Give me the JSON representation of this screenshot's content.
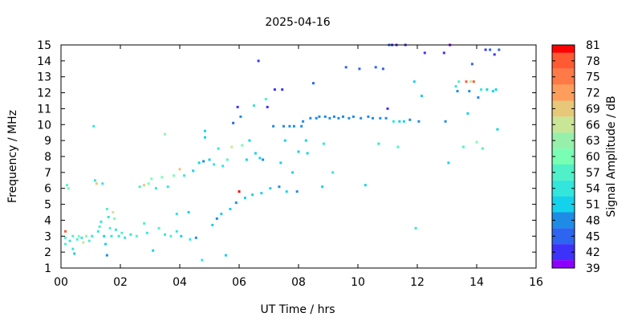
{
  "chart_data": {
    "type": "heatmap",
    "title": "2025-04-16",
    "xlabel": "UT Time / hrs",
    "ylabel": "Frequency / MHz",
    "colorbar_label": "Signal Amplitude / dB",
    "xlim": [
      0,
      16
    ],
    "ylim": [
      1,
      15
    ],
    "x_ticks": [
      "00",
      "02",
      "04",
      "06",
      "08",
      "10",
      "12",
      "14",
      "16"
    ],
    "y_ticks": [
      "1",
      "2",
      "3",
      "4",
      "5",
      "6",
      "7",
      "8",
      "9",
      "10",
      "11",
      "12",
      "13",
      "14",
      "15"
    ],
    "grid": false,
    "colorbar": {
      "levels": [
        81,
        78,
        75,
        72,
        69,
        66,
        63,
        60,
        57,
        54,
        51,
        48,
        45,
        42,
        39
      ],
      "colors": [
        "#ff0000",
        "#ff5a32",
        "#ff7a46",
        "#ff9e5c",
        "#e6c878",
        "#c8e696",
        "#96f0aa",
        "#78ffb4",
        "#50f0c8",
        "#32e6dc",
        "#14d2eb",
        "#1e8ce6",
        "#2d64f0",
        "#3c32fa",
        "#8c00ff"
      ]
    },
    "points": [
      [
        0.15,
        3.3,
        78
      ],
      [
        0.15,
        2.9,
        57
      ],
      [
        0.15,
        2.5,
        57
      ],
      [
        0.2,
        6.2,
        57
      ],
      [
        0.25,
        6.0,
        60
      ],
      [
        0.3,
        2.7,
        54
      ],
      [
        0.4,
        3.0,
        57
      ],
      [
        0.4,
        2.2,
        54
      ],
      [
        0.45,
        1.9,
        51
      ],
      [
        0.55,
        2.8,
        57
      ],
      [
        0.6,
        3.0,
        60
      ],
      [
        0.7,
        2.9,
        54
      ],
      [
        0.75,
        2.6,
        66
      ],
      [
        0.85,
        3.0,
        63
      ],
      [
        0.95,
        2.7,
        57
      ],
      [
        1.05,
        3.0,
        54
      ],
      [
        1.1,
        9.9,
        54
      ],
      [
        1.15,
        6.5,
        54
      ],
      [
        1.2,
        6.3,
        69
      ],
      [
        1.25,
        3.3,
        54
      ],
      [
        1.3,
        3.6,
        57
      ],
      [
        1.35,
        3.9,
        54
      ],
      [
        1.4,
        6.3,
        54
      ],
      [
        1.45,
        3.0,
        51
      ],
      [
        1.5,
        2.5,
        51
      ],
      [
        1.55,
        1.8,
        48
      ],
      [
        1.55,
        4.7,
        57
      ],
      [
        1.6,
        4.2,
        54
      ],
      [
        1.65,
        3.5,
        57
      ],
      [
        1.7,
        3.0,
        54
      ],
      [
        1.75,
        4.5,
        66
      ],
      [
        1.8,
        4.1,
        60
      ],
      [
        1.85,
        3.4,
        54
      ],
      [
        1.95,
        3.0,
        54
      ],
      [
        2.05,
        3.2,
        57
      ],
      [
        2.15,
        2.9,
        54
      ],
      [
        2.35,
        3.1,
        54
      ],
      [
        2.55,
        3.0,
        57
      ],
      [
        2.65,
        6.1,
        57
      ],
      [
        2.8,
        6.2,
        69
      ],
      [
        2.8,
        3.8,
        57
      ],
      [
        2.9,
        3.2,
        54
      ],
      [
        2.95,
        6.3,
        60
      ],
      [
        3.05,
        6.6,
        60
      ],
      [
        3.1,
        2.1,
        51
      ],
      [
        3.2,
        6.0,
        54
      ],
      [
        3.3,
        3.5,
        57
      ],
      [
        3.4,
        6.7,
        60
      ],
      [
        3.5,
        3.1,
        54
      ],
      [
        3.5,
        9.4,
        63
      ],
      [
        3.6,
        6.1,
        54
      ],
      [
        3.7,
        3.0,
        57
      ],
      [
        3.8,
        6.8,
        60
      ],
      [
        3.9,
        3.3,
        54
      ],
      [
        3.9,
        4.4,
        54
      ],
      [
        4.0,
        7.2,
        69
      ],
      [
        4.05,
        3.0,
        51
      ],
      [
        4.15,
        6.8,
        54
      ],
      [
        4.3,
        4.5,
        51
      ],
      [
        4.35,
        2.8,
        54
      ],
      [
        4.45,
        7.1,
        51
      ],
      [
        4.55,
        2.9,
        48
      ],
      [
        4.65,
        7.6,
        51
      ],
      [
        4.75,
        1.5,
        54
      ],
      [
        4.8,
        7.7,
        48
      ],
      [
        4.85,
        9.2,
        51
      ],
      [
        4.85,
        9.6,
        51
      ],
      [
        5.0,
        7.8,
        51
      ],
      [
        5.1,
        3.7,
        51
      ],
      [
        5.15,
        7.5,
        54
      ],
      [
        5.25,
        4.1,
        48
      ],
      [
        5.3,
        8.5,
        54
      ],
      [
        5.4,
        4.4,
        51
      ],
      [
        5.45,
        7.4,
        54
      ],
      [
        5.55,
        1.8,
        51
      ],
      [
        5.6,
        7.8,
        57
      ],
      [
        5.7,
        4.7,
        51
      ],
      [
        5.75,
        8.6,
        66
      ],
      [
        5.8,
        10.1,
        45
      ],
      [
        5.9,
        5.1,
        48
      ],
      [
        5.95,
        11.1,
        42
      ],
      [
        6.0,
        5.8,
        81
      ],
      [
        6.05,
        10.5,
        48
      ],
      [
        6.1,
        8.7,
        60
      ],
      [
        6.2,
        5.4,
        51
      ],
      [
        6.25,
        7.8,
        51
      ],
      [
        6.35,
        9.0,
        51
      ],
      [
        6.45,
        5.6,
        51
      ],
      [
        6.5,
        11.2,
        54
      ],
      [
        6.55,
        8.2,
        51
      ],
      [
        6.65,
        14.0,
        42
      ],
      [
        6.7,
        7.9,
        51
      ],
      [
        6.75,
        5.7,
        51
      ],
      [
        6.8,
        7.8,
        48
      ],
      [
        6.9,
        11.6,
        57
      ],
      [
        6.95,
        11.1,
        42
      ],
      [
        7.05,
        6.0,
        51
      ],
      [
        7.15,
        9.9,
        48
      ],
      [
        7.2,
        12.2,
        42
      ],
      [
        7.35,
        6.1,
        48
      ],
      [
        7.4,
        7.6,
        51
      ],
      [
        7.45,
        12.2,
        42
      ],
      [
        7.5,
        9.9,
        48
      ],
      [
        7.55,
        9.0,
        51
      ],
      [
        7.6,
        5.8,
        51
      ],
      [
        7.7,
        9.9,
        48
      ],
      [
        7.8,
        7.0,
        51
      ],
      [
        7.85,
        9.9,
        48
      ],
      [
        7.95,
        5.8,
        48
      ],
      [
        8.0,
        8.3,
        51
      ],
      [
        8.1,
        9.9,
        48
      ],
      [
        8.15,
        10.2,
        48
      ],
      [
        8.25,
        9.0,
        51
      ],
      [
        8.3,
        8.2,
        51
      ],
      [
        8.4,
        10.4,
        48
      ],
      [
        8.5,
        12.6,
        45
      ],
      [
        8.6,
        10.4,
        48
      ],
      [
        8.7,
        10.5,
        48
      ],
      [
        8.8,
        6.1,
        51
      ],
      [
        8.85,
        8.8,
        54
      ],
      [
        8.9,
        10.5,
        48
      ],
      [
        9.05,
        10.4,
        48
      ],
      [
        9.15,
        7.0,
        54
      ],
      [
        9.2,
        10.5,
        48
      ],
      [
        9.35,
        10.4,
        48
      ],
      [
        9.5,
        10.5,
        48
      ],
      [
        9.6,
        13.6,
        45
      ],
      [
        9.7,
        10.4,
        48
      ],
      [
        9.85,
        10.5,
        48
      ],
      [
        10.05,
        13.5,
        45
      ],
      [
        10.1,
        10.4,
        48
      ],
      [
        10.25,
        6.2,
        51
      ],
      [
        10.35,
        10.5,
        48
      ],
      [
        10.5,
        10.4,
        48
      ],
      [
        10.6,
        13.6,
        45
      ],
      [
        10.7,
        8.8,
        54
      ],
      [
        10.75,
        10.4,
        48
      ],
      [
        10.85,
        13.5,
        45
      ],
      [
        10.95,
        10.4,
        48
      ],
      [
        11.0,
        11.0,
        42
      ],
      [
        11.05,
        15.0,
        45
      ],
      [
        11.15,
        15.0,
        42
      ],
      [
        11.2,
        10.2,
        54
      ],
      [
        11.3,
        15.0,
        42
      ],
      [
        11.35,
        8.6,
        57
      ],
      [
        11.4,
        10.2,
        51
      ],
      [
        11.55,
        10.2,
        51
      ],
      [
        11.6,
        15.0,
        42
      ],
      [
        11.75,
        10.3,
        48
      ],
      [
        11.9,
        12.7,
        51
      ],
      [
        11.95,
        3.5,
        54
      ],
      [
        12.05,
        10.2,
        48
      ],
      [
        12.15,
        11.8,
        51
      ],
      [
        12.25,
        14.5,
        42
      ],
      [
        12.9,
        14.5,
        42
      ],
      [
        12.95,
        10.2,
        48
      ],
      [
        13.05,
        7.6,
        51
      ],
      [
        13.1,
        15.0,
        39
      ],
      [
        13.3,
        12.4,
        54
      ],
      [
        13.35,
        12.1,
        48
      ],
      [
        13.4,
        12.7,
        57
      ],
      [
        13.55,
        8.6,
        57
      ],
      [
        13.65,
        12.7,
        78
      ],
      [
        13.7,
        10.7,
        51
      ],
      [
        13.75,
        12.1,
        48
      ],
      [
        13.8,
        12.7,
        66
      ],
      [
        13.85,
        13.8,
        45
      ],
      [
        13.9,
        12.7,
        78
      ],
      [
        14.0,
        8.9,
        60
      ],
      [
        14.05,
        11.7,
        48
      ],
      [
        14.15,
        12.2,
        54
      ],
      [
        14.2,
        8.5,
        57
      ],
      [
        14.3,
        14.7,
        42
      ],
      [
        14.35,
        12.2,
        51
      ],
      [
        14.45,
        14.7,
        45
      ],
      [
        14.55,
        12.1,
        51
      ],
      [
        14.6,
        14.4,
        42
      ],
      [
        14.65,
        12.2,
        51
      ],
      [
        14.7,
        9.7,
        51
      ],
      [
        14.75,
        14.7,
        45
      ]
    ]
  }
}
